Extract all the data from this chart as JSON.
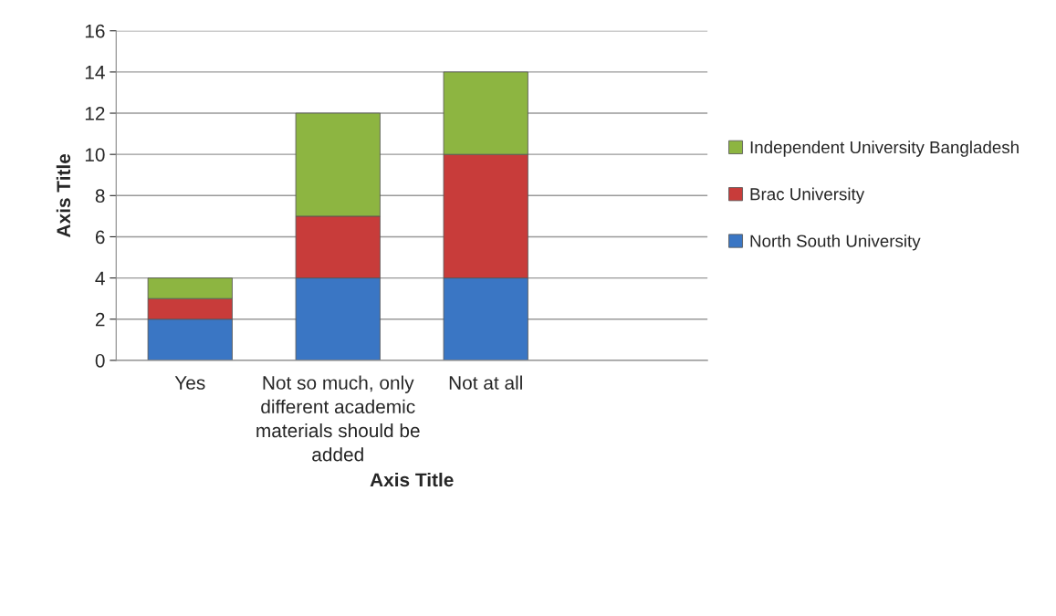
{
  "chart_data": {
    "type": "bar",
    "stacked": true,
    "xlabel": "Axis Title",
    "ylabel": "Axis Title",
    "categories": [
      "Yes",
      "Not so much, only different academic materials should be added",
      "Not at all",
      null
    ],
    "series": [
      {
        "name": "North South University",
        "color": "#3a76c4",
        "values": [
          2,
          4,
          4,
          null
        ]
      },
      {
        "name": "Brac University",
        "color": "#c83c3a",
        "values": [
          1,
          3,
          6,
          null
        ]
      },
      {
        "name": "Independent University Bangladesh",
        "color": "#8db541",
        "values": [
          1,
          5,
          4,
          null
        ]
      }
    ],
    "ylim": [
      0,
      16
    ],
    "yticks": [
      0,
      2,
      4,
      6,
      8,
      10,
      12,
      14,
      16
    ],
    "grid": "y",
    "legend": "right"
  }
}
